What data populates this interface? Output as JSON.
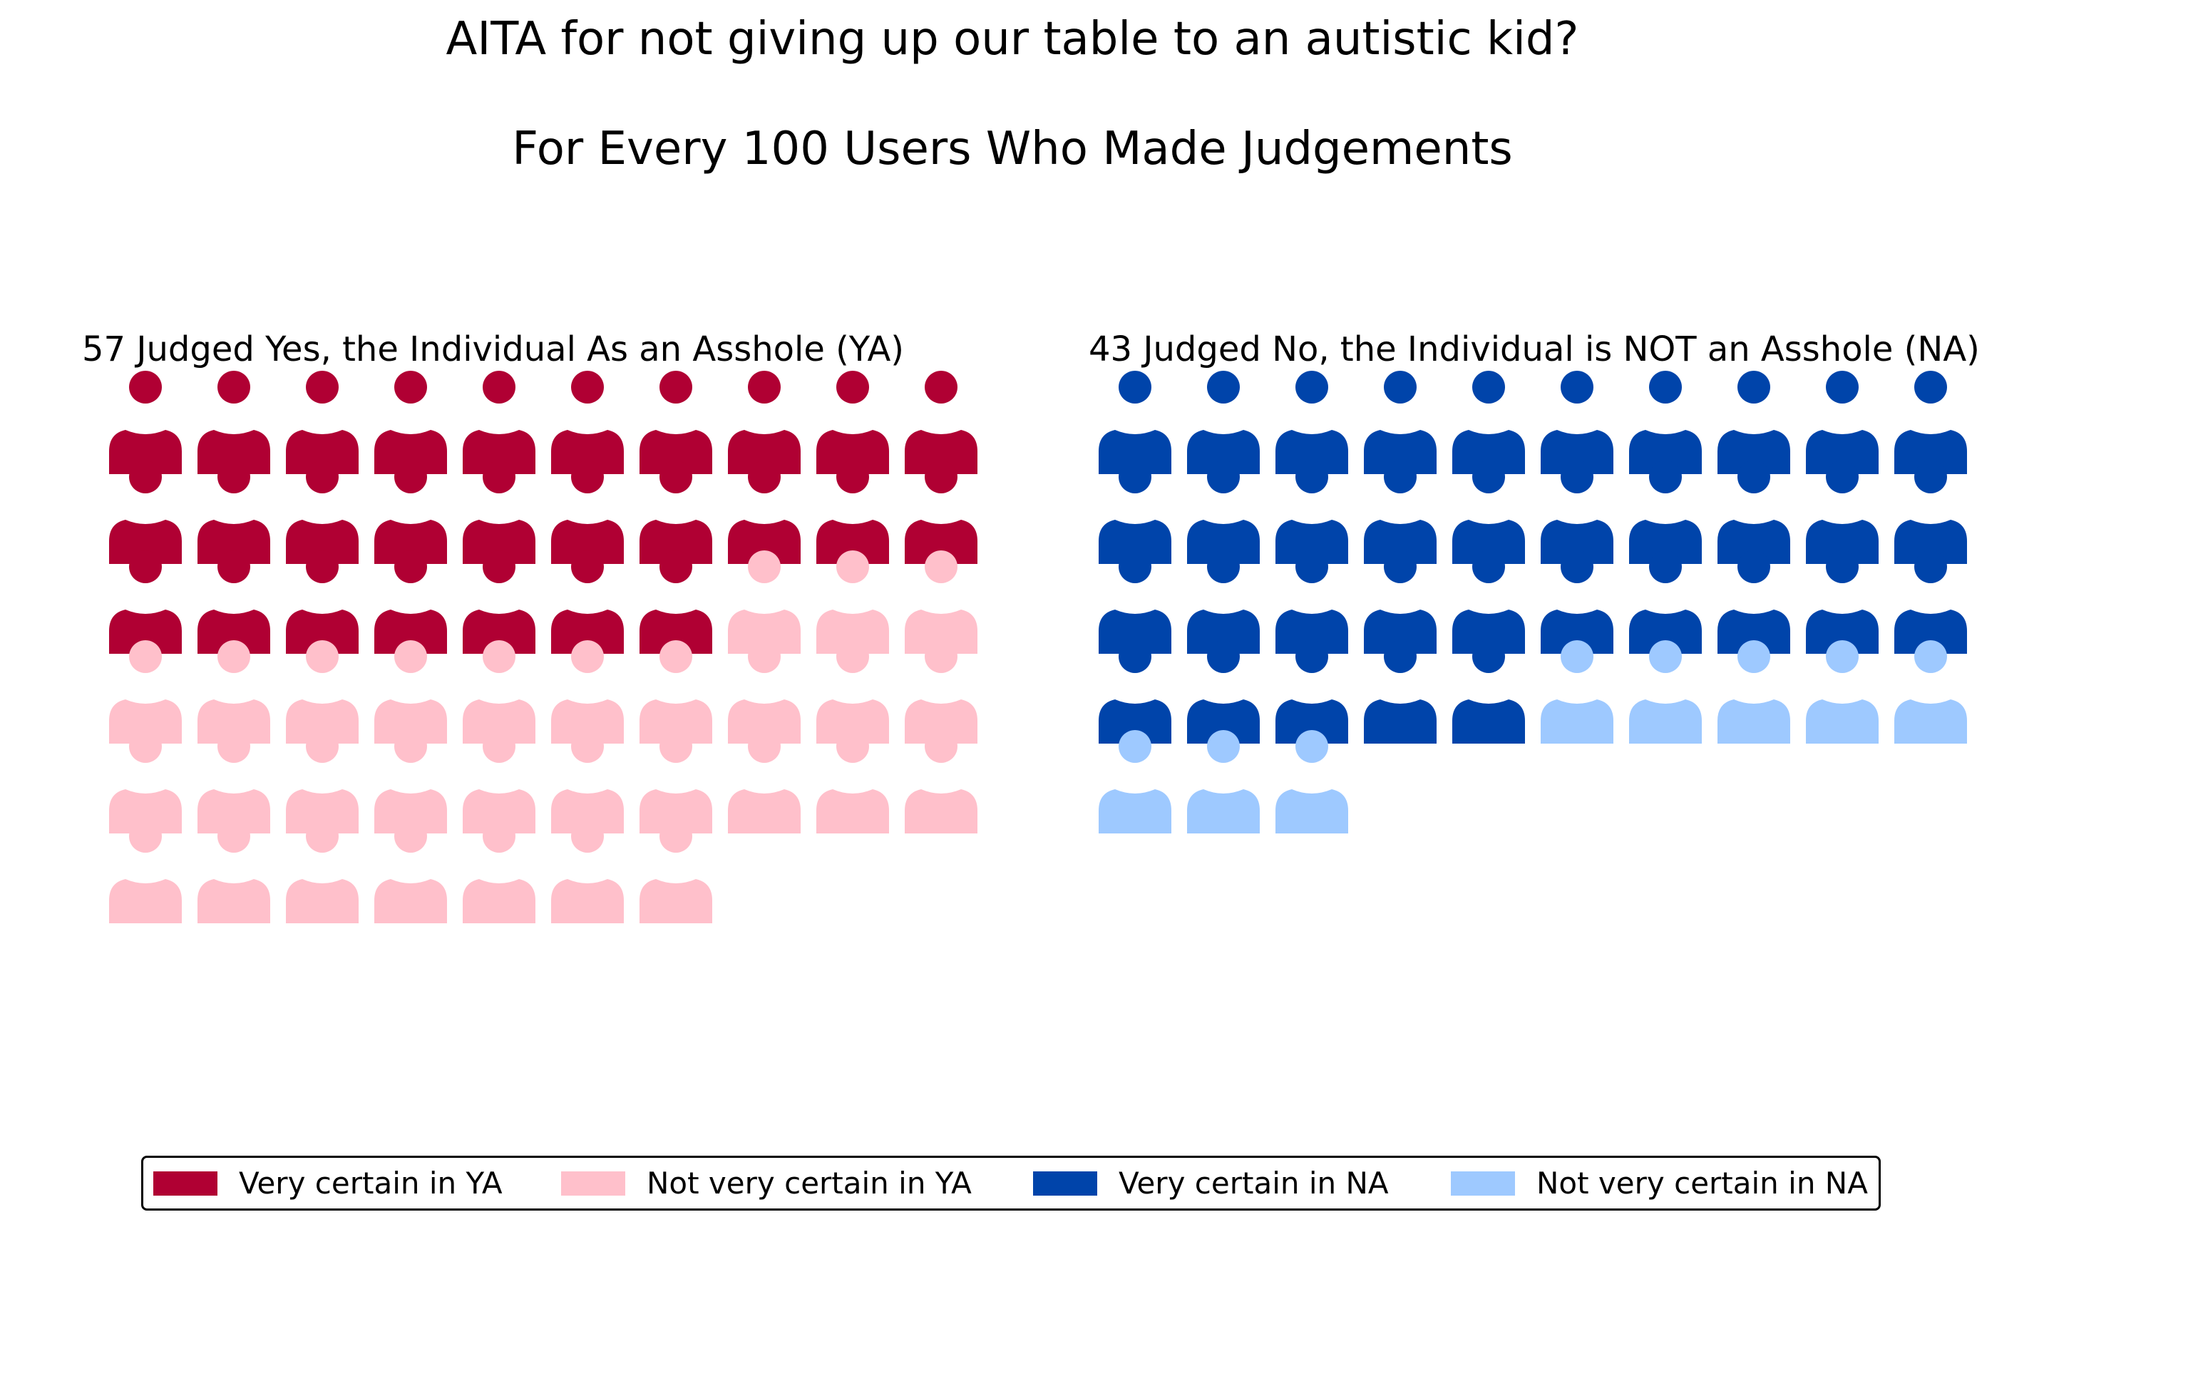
{
  "title": "AITA for not giving up our table to an autistic kid?",
  "subtitle": "For Every 100 Users Who Made Judgements",
  "chart_data": {
    "type": "pictogram",
    "unit": "user",
    "panels": [
      {
        "key": "ya",
        "title": "57 Judged Yes, the Individual As an Asshole (YA)",
        "total": 57,
        "segments": [
          {
            "name": "Very certain in YA",
            "count": 27,
            "color": "#b00033"
          },
          {
            "name": "Not very certain in YA",
            "count": 30,
            "color": "#ffc0cb"
          }
        ]
      },
      {
        "key": "na",
        "title": "43 Judged No, the Individual is NOT an Asshole (NA)",
        "total": 43,
        "segments": [
          {
            "name": "Very certain in NA",
            "count": 35,
            "color": "#0044aa"
          },
          {
            "name": "Not very certain in NA",
            "count": 8,
            "color": "#9ec9ff"
          }
        ]
      }
    ],
    "legend": {
      "placement": "bottom",
      "entries": [
        {
          "label": "Very certain in YA",
          "color": "#b00033"
        },
        {
          "label": "Not very certain in YA",
          "color": "#ffc0cb"
        },
        {
          "label": "Very certain in NA",
          "color": "#0044aa"
        },
        {
          "label": "Not very certain in NA",
          "color": "#9ec9ff"
        }
      ]
    },
    "icon": "person-icon",
    "columns": 10
  }
}
